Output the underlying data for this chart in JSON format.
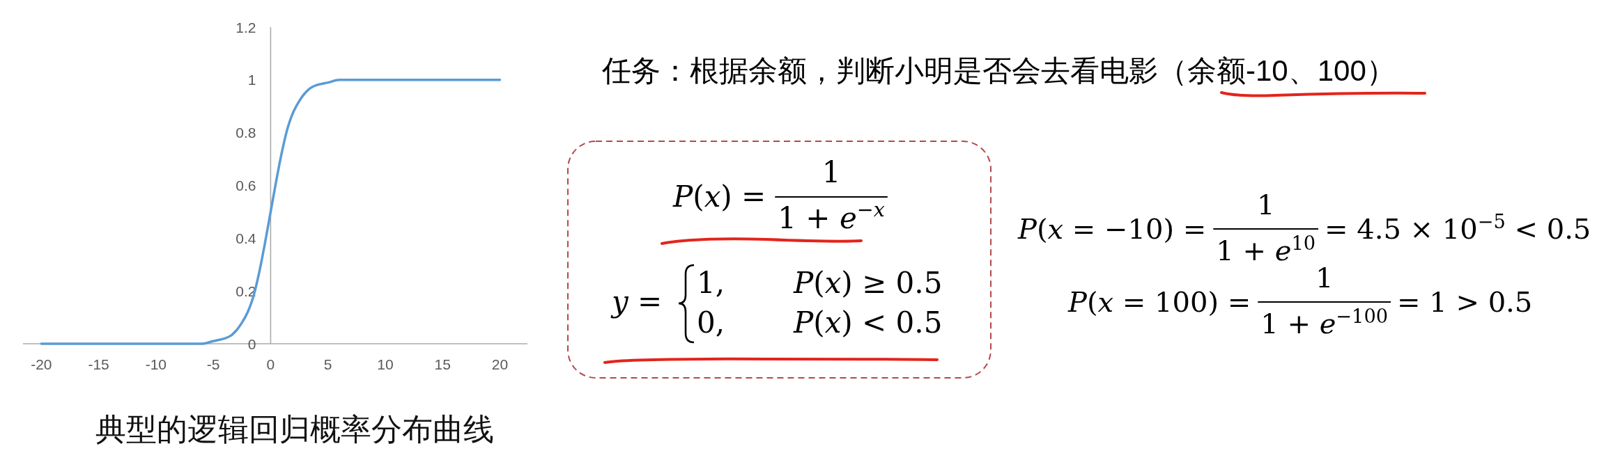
{
  "chart_data": {
    "type": "line",
    "title": "典型的逻辑回归概率分布曲线",
    "x": [
      -20,
      -10,
      -7,
      -6,
      -5,
      -4,
      -3.5,
      -3,
      -2.5,
      -2,
      -1.5,
      -1,
      -0.5,
      0,
      0.5,
      1,
      1.5,
      2,
      2.5,
      3,
      3.5,
      4,
      5,
      6,
      7,
      10,
      20
    ],
    "series": [
      {
        "color": "#5b9bd5",
        "values": [
          0,
          0,
          0,
          0,
          0.01,
          0.02,
          0.03,
          0.05,
          0.08,
          0.12,
          0.18,
          0.27,
          0.38,
          0.5,
          0.62,
          0.73,
          0.82,
          0.88,
          0.92,
          0.95,
          0.97,
          0.98,
          0.99,
          1,
          1,
          1,
          1
        ]
      }
    ],
    "xlim": [
      -21.6,
      22.4
    ],
    "xticks": [
      -20,
      -15,
      -10,
      -5,
      0,
      5,
      10,
      15,
      20
    ],
    "ylim": [
      0,
      1.2
    ],
    "yticks": [
      0,
      0.2,
      0.4,
      0.6,
      0.8,
      1,
      1.2
    ],
    "annotations": [
      "任务：根据余额，判断小明是否会去看电影（余额-10、100）",
      "P(x) =",
      "1",
      "1 + e$^{−x}$",
      "y =",
      "1,",
      "P(x) ≥ 0.5",
      "0,",
      "P(x) < 0.5",
      "P(x = −10) =",
      "1",
      "1 + e$^{10}$",
      "= 4.5 × 10$^{−5}$ < 0.5",
      "P(x = 100) =",
      "1",
      "1 + e$^{−100}$",
      "= 1 > 0.5"
    ]
  }
}
